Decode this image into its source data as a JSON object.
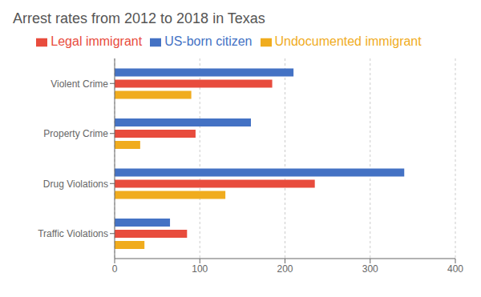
{
  "chart_data": {
    "type": "bar",
    "orientation": "horizontal",
    "title": "Arrest rates from 2012 to 2018 in Texas",
    "categories": [
      "Violent Crime",
      "Property Crime",
      "Drug Violations",
      "Traffic Violations"
    ],
    "series": [
      {
        "name": "US-born citizen",
        "color": "#4472C4",
        "values": [
          210,
          160,
          340,
          65
        ]
      },
      {
        "name": "Legal immigrant",
        "color": "#E84C3D",
        "values": [
          185,
          95,
          235,
          85
        ]
      },
      {
        "name": "Undocumented immigrant",
        "color": "#F0AC1E",
        "values": [
          90,
          30,
          130,
          35
        ]
      }
    ],
    "xlim": [
      0,
      400
    ],
    "xticks": [
      0,
      100,
      200,
      300,
      400
    ],
    "grid": true,
    "legend": "top"
  }
}
